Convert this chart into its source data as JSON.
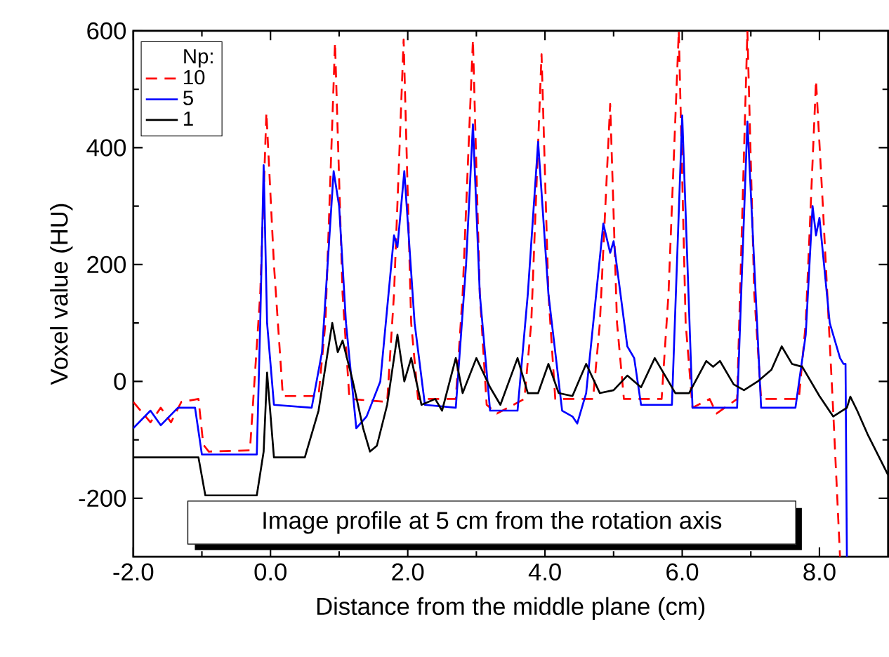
{
  "chart_data": {
    "type": "line",
    "xlabel": "Distance from the middle plane (cm)",
    "ylabel": "Voxel value (HU)",
    "legend_title": "Np:",
    "legend": "top left",
    "grid": false,
    "xlim": [
      -2,
      9
    ],
    "ylim": [
      -300,
      600
    ],
    "xticks": [
      {
        "value": -2,
        "label": "-2.0"
      },
      {
        "value": 0,
        "label": "0.0"
      },
      {
        "value": 2,
        "label": "2.0"
      },
      {
        "value": 4,
        "label": "4.0"
      },
      {
        "value": 6,
        "label": "6.0"
      },
      {
        "value": 8,
        "label": "8.0"
      }
    ],
    "yticks": [
      -200,
      0,
      200,
      400,
      600
    ],
    "annotations": [
      "Image profile at 5 cm from the rotation axis"
    ],
    "series": [
      {
        "name": "10",
        "color": "#ff0000",
        "line_style": "dashed",
        "x": [
          -2,
          -1.75,
          -1.6,
          -1.45,
          -1.3,
          -1.05,
          -0.98,
          -0.9,
          -0.3,
          -0.15,
          -0.06,
          0.05,
          0.18,
          0.7,
          0.8,
          0.94,
          1.05,
          1.15,
          1.7,
          1.8,
          1.94,
          2.05,
          2.15,
          2.7,
          2.8,
          2.95,
          3.05,
          3.15,
          3.3,
          3.7,
          3.8,
          3.95,
          4.05,
          4.15,
          4.7,
          4.8,
          4.95,
          5.05,
          5.15,
          5.7,
          5.8,
          5.95,
          6.05,
          6.15,
          6.4,
          6.5,
          6.8,
          6.95,
          7.05,
          7.15,
          7.7,
          7.8,
          7.95,
          8.05,
          8.2,
          8.3
        ],
        "values": [
          -35,
          -70,
          -45,
          -70,
          -35,
          -30,
          -108,
          -120,
          -118,
          150,
          460,
          200,
          -25,
          -25,
          100,
          580,
          150,
          -30,
          -35,
          150,
          585,
          100,
          -30,
          -30,
          150,
          585,
          150,
          -40,
          -55,
          -30,
          100,
          560,
          150,
          -30,
          -30,
          100,
          475,
          100,
          -30,
          -30,
          150,
          600,
          100,
          -45,
          -30,
          -55,
          -30,
          600,
          150,
          -30,
          -30,
          100,
          515,
          300,
          -50,
          -300
        ]
      },
      {
        "name": "5",
        "color": "#0000ff",
        "line_style": "solid",
        "x": [
          -2,
          -1.75,
          -1.6,
          -1.35,
          -1.1,
          -1.0,
          -0.2,
          -0.15,
          -0.1,
          -0.05,
          0.05,
          0.6,
          0.75,
          0.92,
          1.0,
          1.1,
          1.25,
          1.4,
          1.6,
          1.8,
          1.85,
          1.95,
          2.1,
          2.25,
          2.7,
          2.85,
          2.95,
          3.05,
          3.2,
          3.6,
          3.75,
          3.9,
          4.05,
          4.25,
          4.4,
          4.47,
          4.6,
          4.85,
          4.95,
          5.0,
          5.2,
          5.3,
          5.4,
          5.85,
          6.0,
          6.15,
          6.8,
          6.95,
          7.15,
          7.65,
          7.8,
          7.9,
          7.95,
          8.0,
          8.15,
          8.3,
          8.35,
          8.38,
          8.4
        ],
        "values": [
          -80,
          -50,
          -75,
          -45,
          -45,
          -125,
          -125,
          100,
          370,
          100,
          -40,
          -45,
          50,
          360,
          300,
          100,
          -80,
          -60,
          0,
          250,
          230,
          360,
          100,
          -40,
          -45,
          200,
          440,
          150,
          -50,
          -50,
          150,
          410,
          150,
          -50,
          -60,
          -72,
          -20,
          270,
          220,
          240,
          60,
          40,
          -40,
          -40,
          455,
          -45,
          -45,
          445,
          -45,
          -45,
          80,
          300,
          250,
          280,
          100,
          40,
          30,
          30,
          -300
        ]
      },
      {
        "name": "1",
        "color": "#000000",
        "line_style": "solid",
        "x": [
          -2,
          -1.05,
          -0.95,
          -0.2,
          -0.1,
          -0.05,
          0.05,
          0.5,
          0.7,
          0.9,
          0.98,
          1.05,
          1.2,
          1.35,
          1.45,
          1.55,
          1.7,
          1.85,
          1.95,
          2.05,
          2.2,
          2.4,
          2.5,
          2.7,
          2.8,
          3.0,
          3.2,
          3.35,
          3.6,
          3.75,
          3.9,
          4.05,
          4.2,
          4.4,
          4.6,
          4.8,
          5.0,
          5.2,
          5.4,
          5.6,
          5.8,
          5.9,
          6.1,
          6.35,
          6.45,
          6.55,
          6.75,
          6.9,
          7.1,
          7.3,
          7.45,
          7.6,
          7.75,
          8.0,
          8.2,
          8.4,
          8.45,
          8.55,
          8.7,
          9.0
        ],
        "values": [
          -130,
          -130,
          -195,
          -195,
          -120,
          15,
          -130,
          -130,
          -50,
          100,
          50,
          70,
          0,
          -80,
          -120,
          -110,
          -40,
          80,
          0,
          40,
          -40,
          -30,
          -50,
          40,
          -20,
          40,
          -10,
          -40,
          40,
          -20,
          -20,
          30,
          -20,
          -25,
          30,
          -20,
          -15,
          10,
          -10,
          40,
          0,
          -20,
          -20,
          35,
          25,
          35,
          -5,
          -15,
          0,
          20,
          60,
          30,
          25,
          -25,
          -60,
          -45,
          -26,
          -50,
          -90,
          -160
        ]
      }
    ]
  }
}
